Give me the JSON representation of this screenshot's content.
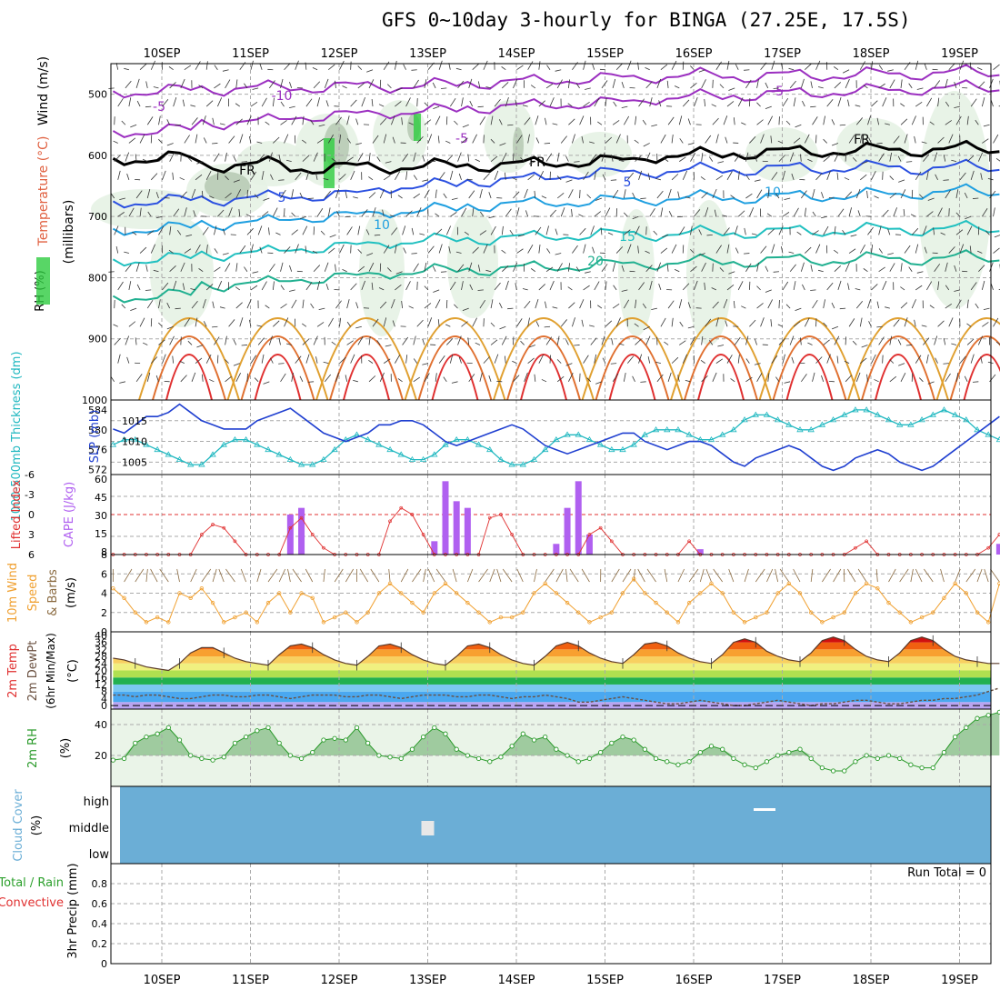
{
  "title": "GFS 0~10day 3-hourly for BINGA (27.25E, 17.5S)",
  "dates": [
    "10SEP",
    "11SEP",
    "12SEP",
    "13SEP",
    "14SEP",
    "15SEP",
    "16SEP",
    "17SEP",
    "18SEP",
    "19SEP"
  ],
  "colors": {
    "frame": "#000000",
    "rh_fill": "#2ecc40",
    "thickness": "#20b8c0",
    "slp": "#1f3fd0",
    "cape": "#b060f0",
    "lifted_index": "#e03030",
    "wind_speed": "#f0a030",
    "wind_barb": "#8a6a40",
    "rh2m": "#2a9a2a",
    "cloud": "#6baed6",
    "precip_total": "#2ca02c",
    "precip_conv": "#e03030",
    "temperature_label": "#e06040",
    "wind_label": "#000000"
  },
  "panels": {
    "upper": {
      "ylabel_rh": "RH (%)",
      "ylabel_temp": "Temperature (°C)",
      "ylabel_wind": "Wind (m/s)",
      "ylabel_units": "(millibars)",
      "yticks": [
        "500",
        "600",
        "700",
        "800",
        "900",
        "1000"
      ],
      "contour_labels": [
        "-10",
        "-5",
        "-5",
        "-5",
        "FR",
        "FR",
        "FR",
        "5",
        "5",
        "10",
        "10",
        "15",
        "20"
      ]
    },
    "slp": {
      "ylabel_thk": "1000-500mb Thickness (dm)",
      "ylabel_slp": "SLP (mb)",
      "yticks_left": [
        "584",
        "580",
        "576",
        "572"
      ],
      "yticks_right": [
        "1015",
        "1010",
        "1005"
      ]
    },
    "cape": {
      "ylabel_li": "Lifted Index",
      "ylabel_cape": "CAPE (J/kg)",
      "yticks_left": [
        "-6",
        "-3",
        "0",
        "3",
        "6"
      ],
      "yticks_right": [
        "60",
        "45",
        "30",
        "15",
        "8"
      ]
    },
    "wind10": {
      "ylabel1": "10m Wind",
      "ylabel2": "Speed",
      "ylabel3": "& Barbs",
      "ylabel_units": "(m/s)",
      "yticks": [
        "8",
        "6",
        "4",
        "2",
        "0"
      ]
    },
    "temp2m": {
      "ylabel1": "2m Temp",
      "ylabel2": "2m DewPt",
      "ylabel3": "(6hr Min/Max)",
      "ylabel_units": "(°C)",
      "yticks": [
        "40",
        "36",
        "32",
        "28",
        "24",
        "20",
        "16",
        "12",
        "8",
        "4",
        "0"
      ]
    },
    "rh2m": {
      "ylabel": "2m RH",
      "ylabel_units": "(%)",
      "yticks": [
        "40",
        "20"
      ]
    },
    "cloud": {
      "ylabel": "Cloud Cover",
      "ylabel_units": "(%)",
      "levels": [
        "high",
        "middle",
        "low"
      ]
    },
    "precip": {
      "ylabel_total": "Total / Rain",
      "ylabel_conv": "Convective",
      "ylabel_units": "3hr Precip (mm)",
      "yticks": [
        "0.8",
        "0.6",
        "0.4",
        "0.2",
        "0"
      ],
      "run_total": "Run Total = 0"
    }
  },
  "chart_data": {
    "type": "line",
    "x_unit": "3-hourly steps from 10 Sep 00Z",
    "thickness_dm": [
      577,
      578,
      578,
      577,
      576,
      575,
      574,
      573,
      573,
      575,
      577,
      578,
      578,
      577,
      576,
      575,
      574,
      573,
      573,
      574,
      576,
      578,
      579,
      578,
      577,
      576,
      575,
      574,
      574,
      575,
      577,
      578,
      578,
      577,
      576,
      574,
      573,
      573,
      574,
      576,
      578,
      579,
      579,
      578,
      577,
      576,
      576,
      577,
      579,
      580,
      580,
      580,
      579,
      578,
      578,
      579,
      580,
      582,
      583,
      583,
      582,
      581,
      580,
      580,
      581,
      582,
      583,
      584,
      584,
      583,
      582,
      581,
      581,
      582,
      583,
      584,
      583,
      582,
      580,
      579,
      578
    ],
    "slp_mb": [
      1013,
      1012,
      1014,
      1016,
      1016,
      1017,
      1019,
      1017,
      1015,
      1014,
      1013,
      1013,
      1013,
      1015,
      1016,
      1017,
      1018,
      1016,
      1014,
      1012,
      1011,
      1010,
      1011,
      1012,
      1014,
      1014,
      1015,
      1015,
      1014,
      1012,
      1010,
      1009,
      1010,
      1011,
      1012,
      1013,
      1014,
      1013,
      1011,
      1009,
      1008,
      1007,
      1008,
      1009,
      1010,
      1011,
      1012,
      1012,
      1010,
      1009,
      1008,
      1009,
      1010,
      1010,
      1009,
      1007,
      1005,
      1004,
      1006,
      1007,
      1008,
      1009,
      1008,
      1006,
      1004,
      1003,
      1004,
      1006,
      1007,
      1008,
      1007,
      1005,
      1004,
      1003,
      1004,
      1006,
      1008,
      1010,
      1012,
      1014,
      1016
    ],
    "cape_jkg": [
      0,
      0,
      0,
      0,
      0,
      0,
      0,
      0,
      0,
      0,
      0,
      0,
      0,
      0,
      0,
      0,
      30,
      35,
      0,
      0,
      0,
      0,
      0,
      0,
      0,
      0,
      0,
      0,
      0,
      10,
      55,
      40,
      35,
      0,
      0,
      0,
      0,
      0,
      0,
      0,
      8,
      35,
      55,
      15,
      0,
      0,
      0,
      0,
      0,
      0,
      0,
      0,
      0,
      4,
      0,
      0,
      0,
      0,
      0,
      0,
      0,
      0,
      0,
      0,
      0,
      0,
      0,
      0,
      0,
      0,
      0,
      0,
      0,
      0,
      0,
      0,
      0,
      0,
      0,
      0,
      8
    ],
    "lifted_index": [
      6,
      6,
      6,
      6,
      6,
      6,
      6,
      6,
      3,
      1.5,
      2,
      4,
      6,
      6,
      6,
      6,
      2,
      0.5,
      3,
      5,
      6,
      6,
      6,
      6,
      6,
      1,
      -1,
      0,
      3,
      6,
      6,
      6,
      6,
      6,
      0.5,
      0,
      3,
      6,
      6,
      6,
      6,
      6,
      6,
      3,
      2,
      4,
      6,
      6,
      6,
      6,
      6,
      6,
      4,
      6,
      6,
      6,
      6,
      6,
      6,
      6,
      6,
      6,
      6,
      6,
      6,
      6,
      6,
      5,
      4,
      6,
      6,
      6,
      6,
      6,
      6,
      6,
      6,
      6,
      6,
      5,
      3
    ],
    "wind10_ms": [
      4.5,
      3.5,
      2,
      1,
      1.5,
      1,
      4,
      3.5,
      4.5,
      3,
      1,
      1.5,
      2,
      1,
      3,
      4,
      2,
      4,
      3.5,
      1,
      1.5,
      2,
      1,
      2,
      4,
      5,
      4,
      3,
      2,
      4,
      5,
      4,
      3,
      2,
      1,
      1.5,
      1.5,
      2,
      4,
      5,
      4,
      3,
      2,
      1,
      1.5,
      2,
      4,
      5.5,
      4,
      3,
      2,
      1,
      3,
      4,
      5,
      4,
      2,
      1,
      1.5,
      2,
      4,
      5,
      4,
      2,
      1,
      1.5,
      2,
      4,
      5,
      4.5,
      3,
      2,
      1,
      1.5,
      2,
      3.5,
      5,
      4,
      2,
      1,
      5
    ],
    "temp2m_c": [
      27,
      26,
      24,
      22,
      21,
      20,
      24,
      30,
      33,
      33,
      30,
      27,
      25,
      24,
      23,
      29,
      34,
      35,
      33,
      29,
      26,
      24,
      23,
      28,
      34,
      35,
      33,
      29,
      26,
      24,
      23,
      28,
      34,
      35,
      33,
      29,
      26,
      24,
      23,
      28,
      34,
      36,
      34,
      30,
      27,
      25,
      24,
      29,
      35,
      36,
      34,
      30,
      27,
      25,
      24,
      29,
      36,
      38,
      36,
      31,
      28,
      26,
      25,
      30,
      37,
      39,
      37,
      32,
      28,
      26,
      25,
      30,
      37,
      39,
      37,
      32,
      28,
      26,
      25,
      24,
      24
    ],
    "dewpt2m_c": [
      6,
      6,
      5,
      6,
      6,
      5,
      4,
      4,
      5,
      6,
      6,
      5,
      5,
      6,
      6,
      5,
      4,
      5,
      6,
      6,
      6,
      5,
      5,
      6,
      6,
      5,
      4,
      5,
      6,
      6,
      6,
      5,
      5,
      6,
      6,
      5,
      4,
      5,
      5,
      6,
      5,
      4,
      2,
      2,
      3,
      4,
      5,
      4,
      3,
      2,
      1,
      1,
      2,
      3,
      2,
      1,
      0,
      0,
      1,
      2,
      3,
      2,
      1,
      0,
      1,
      1,
      2,
      3,
      3,
      2,
      1,
      1,
      2,
      3,
      3,
      4,
      4,
      5,
      6,
      8,
      10
    ],
    "rh2m_pct": [
      17,
      18,
      28,
      32,
      34,
      38,
      30,
      20,
      18,
      17,
      19,
      28,
      32,
      36,
      38,
      28,
      20,
      18,
      22,
      30,
      31,
      30,
      38,
      28,
      20,
      19,
      18,
      24,
      32,
      38,
      34,
      24,
      20,
      18,
      16,
      19,
      26,
      34,
      30,
      32,
      24,
      20,
      16,
      18,
      22,
      28,
      32,
      30,
      24,
      18,
      16,
      14,
      16,
      22,
      26,
      24,
      18,
      14,
      12,
      16,
      20,
      22,
      24,
      18,
      12,
      10,
      10,
      16,
      20,
      18,
      20,
      18,
      14,
      12,
      12,
      22,
      32,
      38,
      44,
      46,
      48
    ],
    "cloud_middle_blocks": [
      {
        "x": 13.0,
        "level": "middle"
      }
    ],
    "cloud_high_blocks": [
      {
        "x": 16.8,
        "level": "high"
      }
    ],
    "precip_mm": [],
    "ylim": {
      "slp": [
        1002,
        1020
      ],
      "thickness": [
        571,
        586
      ],
      "cape": [
        0,
        60
      ],
      "lifted_index": [
        -6,
        6
      ],
      "wind10": [
        0,
        8
      ],
      "temp2m": [
        -2,
        42
      ],
      "rh2m": [
        0,
        50
      ],
      "precip": [
        0,
        1
      ]
    }
  }
}
